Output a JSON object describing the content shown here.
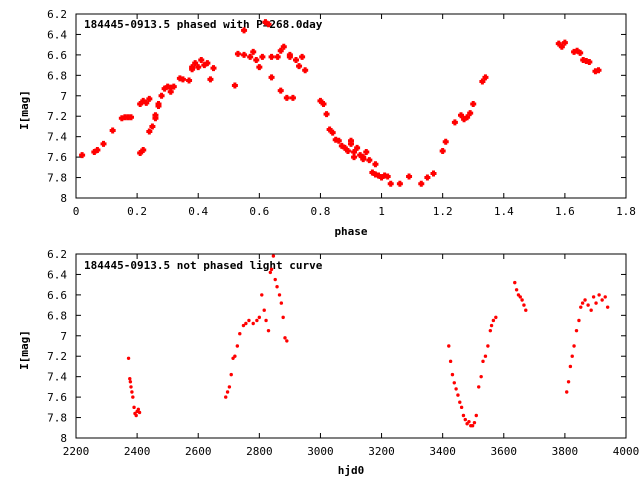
{
  "chart_data": [
    {
      "type": "scatter",
      "title": "184445-0913.5 phased with P=268.0day",
      "xlabel": "phase",
      "ylabel": "I[mag]",
      "xlim": [
        0,
        1.8
      ],
      "ylim": [
        6.2,
        8
      ],
      "y_inverted": true,
      "xticks": [
        "0",
        "0.2",
        "0.4",
        "0.6",
        "0.8",
        "1",
        "1.2",
        "1.4",
        "1.6",
        "1.8"
      ],
      "yticks": [
        "6.2",
        "6.4",
        "6.6",
        "6.8",
        "7",
        "7.2",
        "7.4",
        "7.6",
        "7.8",
        "8"
      ],
      "marker_color": "#ff0000",
      "series": [
        {
          "x": [
            0.02,
            0.06,
            0.07,
            0.09,
            0.12,
            0.15,
            0.16,
            0.17,
            0.18,
            0.21,
            0.21,
            0.22,
            0.22,
            0.23,
            0.24,
            0.24,
            0.25,
            0.26,
            0.26,
            0.27,
            0.27,
            0.28,
            0.29,
            0.3,
            0.31,
            0.31,
            0.32,
            0.34,
            0.35,
            0.37,
            0.38,
            0.38,
            0.39,
            0.4,
            0.41,
            0.42,
            0.43,
            0.44,
            0.45,
            0.52,
            0.53,
            0.55,
            0.55,
            0.57,
            0.58,
            0.59,
            0.6,
            0.61,
            0.62,
            0.63,
            0.64,
            0.64,
            0.66,
            0.67,
            0.67,
            0.68,
            0.69,
            0.7,
            0.7,
            0.71,
            0.72,
            0.73,
            0.74,
            0.75,
            0.8,
            0.81,
            0.82,
            0.83,
            0.84,
            0.85,
            0.86,
            0.87,
            0.88,
            0.89,
            0.9,
            0.9,
            0.91,
            0.91,
            0.92,
            0.93,
            0.94,
            0.94,
            0.95,
            0.96,
            0.97,
            0.98,
            0.98,
            0.99,
            1.0,
            1.01,
            1.02,
            1.03,
            1.06,
            1.09,
            1.13,
            1.15,
            1.17,
            1.2,
            1.21,
            1.24,
            1.26,
            1.27,
            1.28,
            1.29,
            1.3,
            1.33,
            1.34,
            1.58,
            1.59,
            1.6,
            1.63,
            1.64,
            1.65,
            1.66,
            1.67,
            1.68,
            1.7,
            1.71
          ],
          "y": [
            7.58,
            7.55,
            7.53,
            7.47,
            7.34,
            7.22,
            7.21,
            7.21,
            7.21,
            7.56,
            7.08,
            7.53,
            7.05,
            7.07,
            7.03,
            7.35,
            7.3,
            7.22,
            7.19,
            7.1,
            7.08,
            7.0,
            6.93,
            6.91,
            6.96,
            6.92,
            6.91,
            6.83,
            6.84,
            6.85,
            6.72,
            6.74,
            6.68,
            6.72,
            6.65,
            6.7,
            6.68,
            6.84,
            6.73,
            6.9,
            6.59,
            6.6,
            6.36,
            6.62,
            6.57,
            6.65,
            6.72,
            6.62,
            6.28,
            6.3,
            6.62,
            6.82,
            6.62,
            6.95,
            6.56,
            6.52,
            7.02,
            6.6,
            6.62,
            7.02,
            6.65,
            6.71,
            6.62,
            6.75,
            7.05,
            7.08,
            7.18,
            7.33,
            7.36,
            7.43,
            7.44,
            7.49,
            7.51,
            7.54,
            7.44,
            7.47,
            7.55,
            7.6,
            7.51,
            7.58,
            7.6,
            7.62,
            7.55,
            7.63,
            7.75,
            7.67,
            7.77,
            7.78,
            7.8,
            7.78,
            7.79,
            7.86,
            7.86,
            7.79,
            7.86,
            7.8,
            7.76,
            7.54,
            7.45,
            7.26,
            7.19,
            7.23,
            7.21,
            7.17,
            7.08,
            6.86,
            6.82,
            6.49,
            6.52,
            6.48,
            6.57,
            6.56,
            6.58,
            6.65,
            6.66,
            6.67,
            6.76,
            6.75
          ]
        }
      ]
    },
    {
      "type": "scatter",
      "title": "184445-0913.5 not phased light curve",
      "xlabel": "hjd0",
      "ylabel": "I[mag]",
      "xlim": [
        2200,
        4000
      ],
      "ylim": [
        6.2,
        8
      ],
      "y_inverted": true,
      "xticks": [
        "2200",
        "2400",
        "2600",
        "2800",
        "3000",
        "3200",
        "3400",
        "3600",
        "3800",
        "4000"
      ],
      "yticks": [
        "6.2",
        "6.4",
        "6.6",
        "6.8",
        "7",
        "7.2",
        "7.4",
        "7.6",
        "7.8",
        "8"
      ],
      "marker_color": "#ff0000",
      "series": [
        {
          "x": [
            2372,
            2376,
            2378,
            2380,
            2383,
            2386,
            2390,
            2393,
            2397,
            2400,
            2404,
            2408,
            2690,
            2696,
            2702,
            2708,
            2714,
            2720,
            2728,
            2736,
            2748,
            2756,
            2766,
            2780,
            2792,
            2800,
            2808,
            2816,
            2822,
            2830,
            2836,
            2840,
            2846,
            2852,
            2858,
            2866,
            2872,
            2878,
            2884,
            2890,
            3420,
            3426,
            3432,
            3438,
            3444,
            3450,
            3456,
            3462,
            3468,
            3474,
            3480,
            3486,
            3492,
            3498,
            3504,
            3510,
            3518,
            3526,
            3532,
            3540,
            3548,
            3556,
            3560,
            3566,
            3574,
            3636,
            3642,
            3648,
            3654,
            3660,
            3666,
            3672,
            3806,
            3812,
            3818,
            3824,
            3830,
            3838,
            3846,
            3852,
            3858,
            3866,
            3876,
            3886,
            3894,
            3902,
            3912,
            3922,
            3932,
            3940
          ],
          "y": [
            7.22,
            7.42,
            7.45,
            7.5,
            7.55,
            7.6,
            7.7,
            7.76,
            7.78,
            7.74,
            7.72,
            7.75,
            7.6,
            7.55,
            7.5,
            7.38,
            7.22,
            7.2,
            7.1,
            6.98,
            6.9,
            6.88,
            6.85,
            6.88,
            6.85,
            6.82,
            6.6,
            6.75,
            6.85,
            6.95,
            6.38,
            6.35,
            6.22,
            6.45,
            6.52,
            6.6,
            6.68,
            6.82,
            7.02,
            7.05,
            7.1,
            7.25,
            7.38,
            7.46,
            7.52,
            7.58,
            7.65,
            7.7,
            7.78,
            7.82,
            7.86,
            7.84,
            7.88,
            7.88,
            7.85,
            7.78,
            7.5,
            7.4,
            7.25,
            7.2,
            7.1,
            6.95,
            6.9,
            6.85,
            6.82,
            6.48,
            6.55,
            6.6,
            6.62,
            6.65,
            6.7,
            6.75,
            7.55,
            7.45,
            7.3,
            7.2,
            7.1,
            6.95,
            6.85,
            6.72,
            6.68,
            6.65,
            6.7,
            6.75,
            6.62,
            6.68,
            6.6,
            6.65,
            6.62,
            6.72
          ]
        }
      ]
    }
  ]
}
